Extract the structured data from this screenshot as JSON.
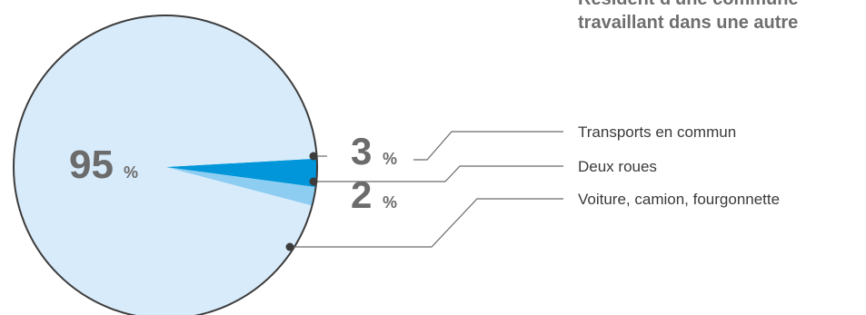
{
  "title_lines": [
    "Résident d'une commune",
    "travaillant dans une autre"
  ],
  "percent_symbol": "%",
  "colors": {
    "voiture": "#d8ebfa",
    "transports": "#0096d9",
    "deux_roues": "#8dcdf2",
    "outline": "#3c3c3c",
    "leader": "#6b6b6b",
    "text_grey": "#6b6b6b"
  },
  "chart_data": {
    "type": "pie",
    "title": "Résident d'une commune travaillant dans une autre",
    "slices": [
      {
        "label": "Transports en commun",
        "value": 3,
        "display": "3"
      },
      {
        "label": "Deux roues",
        "value": 2,
        "display": "2"
      },
      {
        "label": "Voiture, camion, fourgonnette",
        "value": 95,
        "display": "95"
      }
    ],
    "legend_position": "right"
  }
}
